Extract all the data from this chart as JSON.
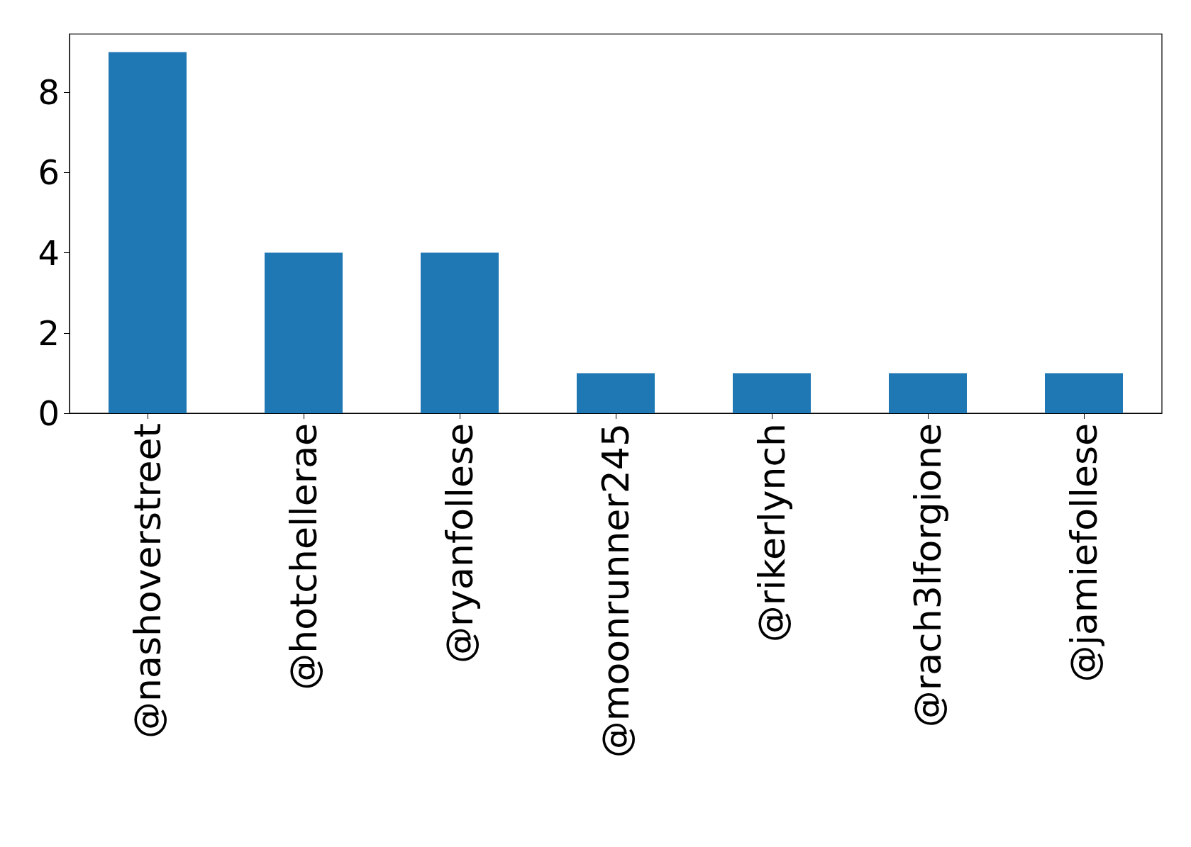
{
  "chart_data": {
    "type": "bar",
    "categories": [
      "@nashoverstreet",
      "@hotchellerae",
      "@ryanfollese",
      "@moonrunner245",
      "@rikerlynch",
      "@rach3lforgione",
      "@jamiefollese"
    ],
    "values": [
      9,
      4,
      4,
      1,
      1,
      1,
      1
    ],
    "color": "#1f77b4",
    "ylim": [
      0,
      9.45
    ],
    "yticks": [
      0,
      2,
      4,
      6,
      8
    ]
  }
}
